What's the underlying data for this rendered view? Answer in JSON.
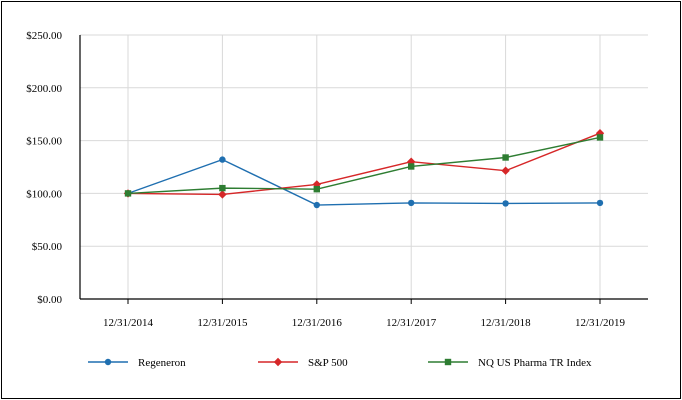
{
  "chart_data": {
    "type": "line",
    "title": "",
    "xlabel": "",
    "ylabel": "",
    "x": [
      "12/31/2014",
      "12/31/2015",
      "12/31/2016",
      "12/31/2017",
      "12/31/2018",
      "12/31/2019"
    ],
    "ylim": [
      0,
      250
    ],
    "y_ticks": [
      0,
      50,
      100,
      150,
      200,
      250
    ],
    "y_tick_labels": [
      "$0.00",
      "$50.00",
      "$100.00",
      "$150.00",
      "$200.00",
      "$250.00"
    ],
    "grid": true,
    "legend_position": "bottom",
    "series": [
      {
        "name": "Regeneron",
        "color": "#1f6fb0",
        "marker": "circle",
        "values": [
          100,
          132,
          89,
          91,
          90.5,
          91
        ]
      },
      {
        "name": "S&P 500",
        "color": "#d62728",
        "marker": "diamond",
        "values": [
          100,
          99,
          108.5,
          130,
          121.5,
          157
        ]
      },
      {
        "name": "NQ US Pharma TR Index",
        "color": "#2e7d32",
        "marker": "square",
        "values": [
          100,
          105,
          104,
          125.5,
          134,
          153
        ]
      }
    ]
  }
}
